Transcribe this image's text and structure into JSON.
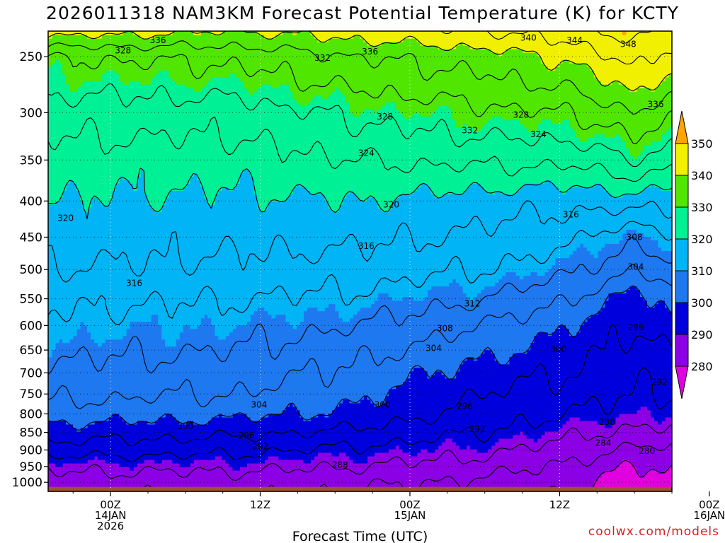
{
  "chart_data": {
    "type": "filled-contour",
    "title": "2026011318 NAM3KM Forecast Potential Temperature (K) for KCTY",
    "xlabel": "Forecast Time (UTC)",
    "ylabel": "",
    "x_range_hours": [
      -5,
      45
    ],
    "y_range_hpa": [
      230,
      1030
    ],
    "y_scale": "log-pressure",
    "y_ticks": [
      250,
      300,
      350,
      400,
      450,
      500,
      550,
      600,
      650,
      700,
      750,
      800,
      850,
      900,
      950,
      1000
    ],
    "x_ticks": [
      {
        "hour": 0,
        "lines": [
          "00Z",
          "14JAN",
          "2026"
        ]
      },
      {
        "hour": 12,
        "lines": [
          "12Z"
        ]
      },
      {
        "hour": 24,
        "lines": [
          "00Z",
          "15JAN"
        ]
      },
      {
        "hour": 36,
        "lines": [
          "12Z"
        ]
      },
      {
        "hour": 48,
        "lines": [
          "00Z",
          "16JAN"
        ]
      }
    ],
    "grid": "dotted",
    "surface_pressure_hpa": 1015,
    "colorbar": {
      "placement": "right",
      "ticks": [
        280,
        290,
        300,
        310,
        320,
        330,
        340,
        350
      ],
      "bins": [
        {
          "from": 270,
          "to": 280,
          "color": "#e000e0"
        },
        {
          "from": 280,
          "to": 290,
          "color": "#8c00e6"
        },
        {
          "from": 290,
          "to": 300,
          "color": "#0000dc"
        },
        {
          "from": 300,
          "to": 310,
          "color": "#1e78f0"
        },
        {
          "from": 310,
          "to": 320,
          "color": "#00b4f5"
        },
        {
          "from": 320,
          "to": 330,
          "color": "#00f096"
        },
        {
          "from": 330,
          "to": 340,
          "color": "#50e600"
        },
        {
          "from": 340,
          "to": 350,
          "color": "#f0f000"
        },
        {
          "from": 350,
          "to": 360,
          "color": "#ffa500"
        }
      ]
    },
    "series": [
      {
        "values": [
          [
            -5,
            230,
            342
          ],
          [
            -5,
            250,
            332
          ],
          [
            -5,
            300,
            326
          ],
          [
            -5,
            350,
            322
          ],
          [
            -5,
            400,
            320
          ],
          [
            -5,
            450,
            318
          ],
          [
            -5,
            500,
            316
          ],
          [
            -5,
            550,
            313
          ],
          [
            -5,
            600,
            311
          ],
          [
            -5,
            650,
            309
          ],
          [
            -5,
            700,
            307
          ],
          [
            -5,
            750,
            305
          ],
          [
            -5,
            800,
            302
          ],
          [
            -5,
            850,
            298
          ],
          [
            -5,
            900,
            294
          ],
          [
            -5,
            950,
            289
          ],
          [
            -5,
            1000,
            286
          ],
          [
            -5,
            1030,
            285
          ],
          [
            10,
            230,
            340
          ],
          [
            10,
            250,
            333
          ],
          [
            10,
            300,
            326
          ],
          [
            10,
            350,
            322
          ],
          [
            10,
            400,
            319
          ],
          [
            10,
            450,
            317
          ],
          [
            10,
            500,
            315
          ],
          [
            10,
            550,
            312
          ],
          [
            10,
            600,
            310
          ],
          [
            10,
            650,
            308
          ],
          [
            10,
            700,
            306
          ],
          [
            10,
            750,
            304
          ],
          [
            10,
            800,
            301
          ],
          [
            10,
            850,
            297
          ],
          [
            10,
            900,
            293
          ],
          [
            10,
            950,
            289
          ],
          [
            10,
            1000,
            286
          ],
          [
            10,
            1030,
            285
          ],
          [
            20,
            230,
            342
          ],
          [
            20,
            250,
            336
          ],
          [
            20,
            300,
            329
          ],
          [
            20,
            350,
            324
          ],
          [
            20,
            400,
            320
          ],
          [
            20,
            450,
            317
          ],
          [
            20,
            500,
            314
          ],
          [
            20,
            550,
            311
          ],
          [
            20,
            600,
            308
          ],
          [
            20,
            650,
            305
          ],
          [
            20,
            700,
            303
          ],
          [
            20,
            750,
            301
          ],
          [
            20,
            800,
            299
          ],
          [
            20,
            850,
            295
          ],
          [
            20,
            900,
            291
          ],
          [
            20,
            950,
            288
          ],
          [
            20,
            1000,
            285
          ],
          [
            20,
            1030,
            284
          ],
          [
            30,
            230,
            344
          ],
          [
            30,
            250,
            338
          ],
          [
            30,
            300,
            331
          ],
          [
            30,
            350,
            325
          ],
          [
            30,
            400,
            318
          ],
          [
            30,
            450,
            315
          ],
          [
            30,
            500,
            312
          ],
          [
            30,
            550,
            308
          ],
          [
            30,
            600,
            304
          ],
          [
            30,
            650,
            301
          ],
          [
            30,
            700,
            298
          ],
          [
            30,
            750,
            296
          ],
          [
            30,
            800,
            294
          ],
          [
            30,
            850,
            292
          ],
          [
            30,
            900,
            289
          ],
          [
            30,
            950,
            286
          ],
          [
            30,
            1000,
            283
          ],
          [
            30,
            1030,
            282
          ],
          [
            37,
            230,
            346
          ],
          [
            37,
            250,
            341
          ],
          [
            37,
            300,
            332
          ],
          [
            37,
            350,
            325
          ],
          [
            37,
            400,
            317
          ],
          [
            37,
            450,
            313
          ],
          [
            37,
            500,
            309
          ],
          [
            37,
            550,
            304
          ],
          [
            37,
            600,
            300
          ],
          [
            37,
            650,
            298
          ],
          [
            37,
            700,
            296
          ],
          [
            37,
            750,
            294
          ],
          [
            37,
            800,
            292
          ],
          [
            37,
            850,
            289
          ],
          [
            37,
            900,
            286
          ],
          [
            37,
            950,
            283
          ],
          [
            37,
            1000,
            281
          ],
          [
            37,
            1030,
            280
          ],
          [
            42,
            230,
            350
          ],
          [
            42,
            250,
            346
          ],
          [
            42,
            300,
            336
          ],
          [
            42,
            350,
            328
          ],
          [
            42,
            400,
            318
          ],
          [
            42,
            450,
            309
          ],
          [
            42,
            500,
            304
          ],
          [
            42,
            550,
            298
          ],
          [
            42,
            600,
            296
          ],
          [
            42,
            650,
            294
          ],
          [
            42,
            700,
            293
          ],
          [
            42,
            750,
            292
          ],
          [
            42,
            800,
            290
          ],
          [
            42,
            850,
            287
          ],
          [
            42,
            900,
            283
          ],
          [
            42,
            950,
            280
          ],
          [
            42,
            1000,
            278
          ],
          [
            42,
            1030,
            277
          ],
          [
            48,
            230,
            344
          ],
          [
            48,
            250,
            338
          ],
          [
            48,
            300,
            330
          ],
          [
            48,
            350,
            323
          ],
          [
            48,
            400,
            317
          ],
          [
            48,
            450,
            313
          ],
          [
            48,
            500,
            310
          ],
          [
            48,
            550,
            306
          ],
          [
            48,
            600,
            302
          ],
          [
            48,
            650,
            298
          ],
          [
            48,
            700,
            294
          ],
          [
            48,
            750,
            292
          ],
          [
            48,
            800,
            290
          ],
          [
            48,
            850,
            287
          ],
          [
            48,
            900,
            284
          ],
          [
            48,
            950,
            281
          ],
          [
            48,
            1000,
            279
          ],
          [
            48,
            1030,
            278
          ]
        ]
      }
    ],
    "contour_labels": [
      {
        "value": "336",
        "hour": 3.8,
        "p": 237
      },
      {
        "value": "328",
        "hour": 1.0,
        "p": 245
      },
      {
        "value": "332",
        "hour": 17.0,
        "p": 251
      },
      {
        "value": "336",
        "hour": 20.8,
        "p": 246
      },
      {
        "value": "340",
        "hour": 33.5,
        "p": 235
      },
      {
        "value": "344",
        "hour": 37.2,
        "p": 237
      },
      {
        "value": "348",
        "hour": 41.5,
        "p": 240
      },
      {
        "value": "336",
        "hour": 43.7,
        "p": 292
      },
      {
        "value": "328",
        "hour": 22.0,
        "p": 304
      },
      {
        "value": "332",
        "hour": 28.8,
        "p": 318
      },
      {
        "value": "328",
        "hour": 32.9,
        "p": 302
      },
      {
        "value": "324",
        "hour": 34.3,
        "p": 322
      },
      {
        "value": "324",
        "hour": 20.5,
        "p": 342
      },
      {
        "value": "320",
        "hour": 22.5,
        "p": 405
      },
      {
        "value": "320",
        "hour": -3.6,
        "p": 423
      },
      {
        "value": "316",
        "hour": 36.9,
        "p": 418
      },
      {
        "value": "308",
        "hour": 42.0,
        "p": 450
      },
      {
        "value": "316",
        "hour": 20.5,
        "p": 463
      },
      {
        "value": "304",
        "hour": 42.1,
        "p": 496
      },
      {
        "value": "316",
        "hour": 1.9,
        "p": 523
      },
      {
        "value": "312",
        "hour": 29.0,
        "p": 559
      },
      {
        "value": "308",
        "hour": 26.8,
        "p": 606
      },
      {
        "value": "296",
        "hour": 42.1,
        "p": 604
      },
      {
        "value": "304",
        "hour": 25.9,
        "p": 646
      },
      {
        "value": "300",
        "hour": 35.9,
        "p": 648
      },
      {
        "value": "292",
        "hour": 44.0,
        "p": 722
      },
      {
        "value": "304",
        "hour": 11.9,
        "p": 777
      },
      {
        "value": "300",
        "hour": 21.8,
        "p": 777
      },
      {
        "value": "296",
        "hour": 28.4,
        "p": 780
      },
      {
        "value": "300",
        "hour": 6.0,
        "p": 832
      },
      {
        "value": "296",
        "hour": 10.9,
        "p": 859
      },
      {
        "value": "292",
        "hour": 29.4,
        "p": 841
      },
      {
        "value": "292",
        "hour": 12.0,
        "p": 890
      },
      {
        "value": "288",
        "hour": 39.8,
        "p": 822
      },
      {
        "value": "284",
        "hour": 39.5,
        "p": 880
      },
      {
        "value": "280",
        "hour": 43.0,
        "p": 903
      },
      {
        "value": "288",
        "hour": 18.4,
        "p": 945
      }
    ]
  },
  "footer": {
    "credit": "coolwx.com/models"
  }
}
